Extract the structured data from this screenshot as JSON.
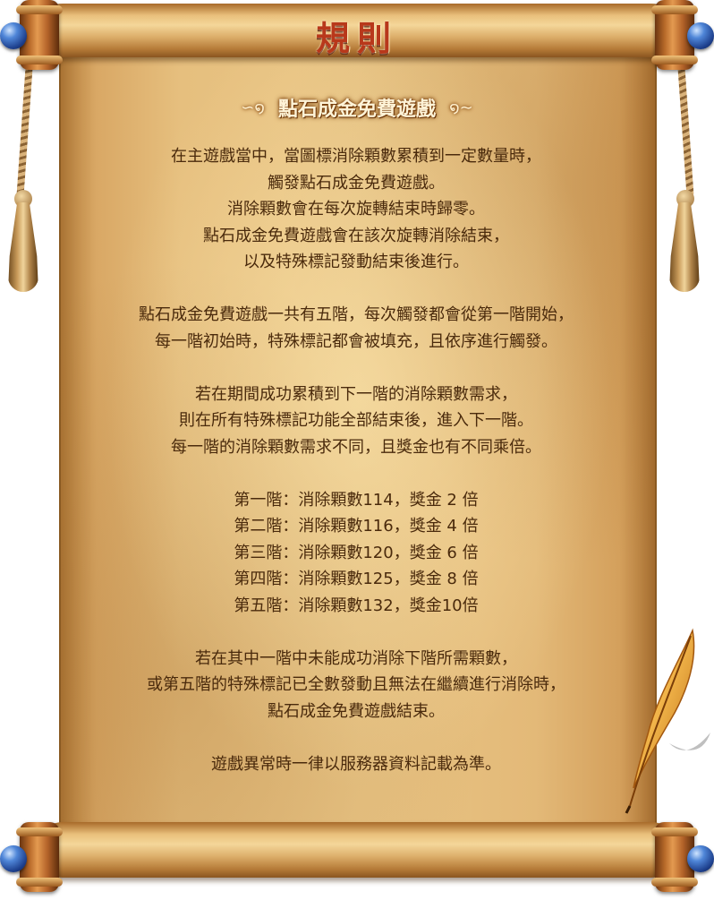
{
  "title": "規則",
  "section_title": "點石成金免費遊戲",
  "paragraphs": [
    [
      "在主遊戲當中，當圖標消除顆數累積到一定數量時，",
      "觸發點石成金免費遊戲。",
      "消除顆數會在每次旋轉結束時歸零。",
      "點石成金免費遊戲會在該次旋轉消除結束，",
      "以及特殊標記發動結束後進行。"
    ],
    [
      "點石成金免費遊戲一共有五階，每次觸發都會從第一階開始，",
      "每一階初始時，特殊標記都會被填充，且依序進行觸發。"
    ],
    [
      "若在期間成功累積到下一階的消除顆數需求，",
      "則在所有特殊標記功能全部結束後，進入下一階。",
      "每一階的消除顆數需求不同，且獎金也有不同乘倍。"
    ],
    [
      "第一階：消除顆數114，獎金 2 倍",
      "第二階：消除顆數116，獎金 4 倍",
      "第三階：消除顆數120，獎金 6 倍",
      "第四階：消除顆數125，獎金 8 倍",
      "第五階：消除顆數132，獎金10倍"
    ],
    [
      "若在其中一階中未能成功消除下階所需顆數，",
      "或第五階的特殊標記已全數發動且無法在繼續進行消除時，",
      "點石成金免費遊戲結束。"
    ],
    [
      "遊戲異常時一律以服務器資料記載為準。"
    ]
  ],
  "colors": {
    "title": "#b8381b",
    "body_text": "#4a2a0c",
    "parchment": "#e9c585"
  },
  "icons": [
    "scroll-knob-icon",
    "tassel-icon",
    "quill-icon",
    "flourish-icon"
  ]
}
